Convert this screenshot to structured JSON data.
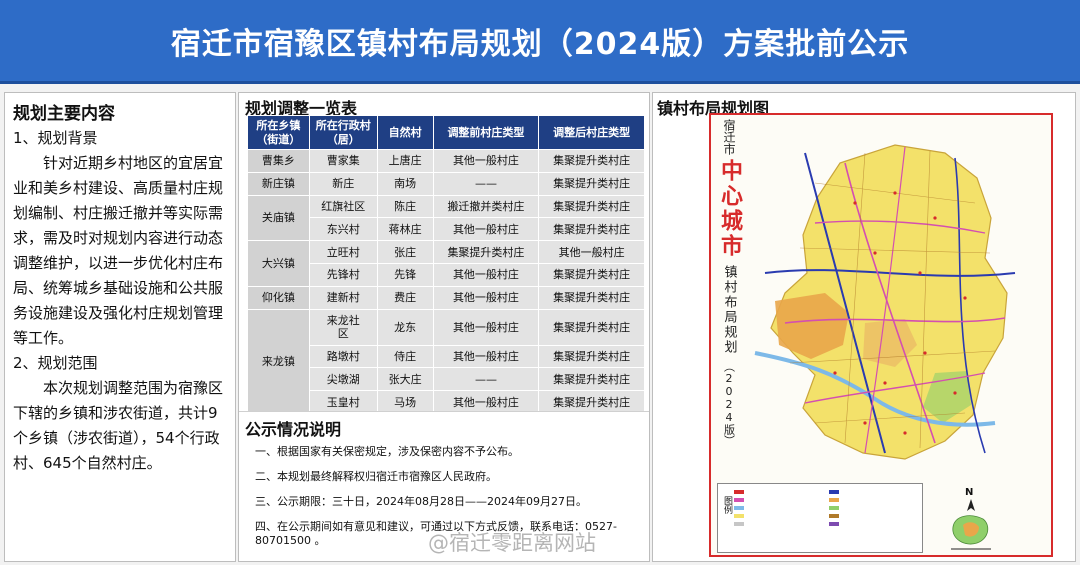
{
  "header": {
    "title": "宿迁市宿豫区镇村布局规划（2024版）方案批前公示"
  },
  "left": {
    "title": "规划主要内容",
    "background_heading": "1、规划背景",
    "background_text": "针对近期乡村地区的宜居宜业和美乡村建设、高质量村庄规划编制、村庄搬迁撤并等实际需求，需及时对规划内容进行动态调整维护，以进一步优化村庄布局、统筹城乡基础设施和公共服务设施建设及强化村庄规划管理等工作。",
    "scope_heading": "2、规划范围",
    "scope_text": "本次规划调整范围为宿豫区下辖的乡镇和涉农街道，共计9个乡镇（涉农街道），54个行政村、645个自然村庄。"
  },
  "table": {
    "title": "规划调整一览表",
    "headers": [
      "所在乡镇（街道）",
      "所在行政村（居）",
      "自然村",
      "调整前村庄类型",
      "调整后村庄类型"
    ],
    "rows": [
      {
        "town": "曹集乡",
        "admin": "曹家集",
        "natural": "上唐庄",
        "before": "其他一般村庄",
        "after": "集聚提升类村庄"
      },
      {
        "town": "新庄镇",
        "admin": "新庄",
        "natural": "南场",
        "before": "——",
        "after": "集聚提升类村庄"
      },
      {
        "town": "关庙镇",
        "admin": "红旗社区",
        "natural": "陈庄",
        "before": "搬迁撤并类村庄",
        "after": "集聚提升类村庄"
      },
      {
        "town": "",
        "admin": "东兴村",
        "natural": "蒋林庄",
        "before": "其他一般村庄",
        "after": "集聚提升类村庄"
      },
      {
        "town": "大兴镇",
        "admin": "立旺村",
        "natural": "张庄",
        "before": "集聚提升类村庄",
        "after": "其他一般村庄"
      },
      {
        "town": "",
        "admin": "先锋村",
        "natural": "先锋",
        "before": "其他一般村庄",
        "after": "集聚提升类村庄"
      },
      {
        "town": "仰化镇",
        "admin": "建新村",
        "natural": "费庄",
        "before": "其他一般村庄",
        "after": "集聚提升类村庄"
      },
      {
        "town": "来龙镇",
        "admin": "来龙社区",
        "natural": "龙东",
        "before": "其他一般村庄",
        "after": "集聚提升类村庄"
      },
      {
        "town": "",
        "admin": "路墩村",
        "natural": "侍庄",
        "before": "其他一般村庄",
        "after": "集聚提升类村庄"
      },
      {
        "town": "",
        "admin": "尖墩湖",
        "natural": "张大庄",
        "before": "——",
        "after": "集聚提升类村庄"
      },
      {
        "town": "",
        "admin": "玉皇村",
        "natural": "马场",
        "before": "其他一般村庄",
        "after": "集聚提升类村庄"
      }
    ]
  },
  "notice": {
    "title": "公示情况说明",
    "items": [
      "一、根据国家有关保密规定，涉及保密内容不予公布。",
      "二、本规划最终解释权归宿迁市宿豫区人民政府。",
      "三、公示期限：三十日，2024年08月28日——2024年09月27日。",
      "四、在公示期间如有意见和建议，可通过以下方式反馈，联系电话：0527-80701500 。"
    ]
  },
  "map": {
    "title": "镇村布局规划图",
    "sheet_city": "宿迁市",
    "sheet_center": "中心城市",
    "sheet_plan": "镇村布局规划",
    "sheet_version": "（2024版）",
    "legend_label": "图例",
    "north_label": "N",
    "colors": {
      "land": "#f3e16a",
      "urban": "#e9a64a",
      "road": "#d44fb0",
      "highway": "#2a3bb0",
      "water": "#7db9e8",
      "green": "#8fcf6a"
    }
  },
  "watermark": "@宿迁零距离网站"
}
